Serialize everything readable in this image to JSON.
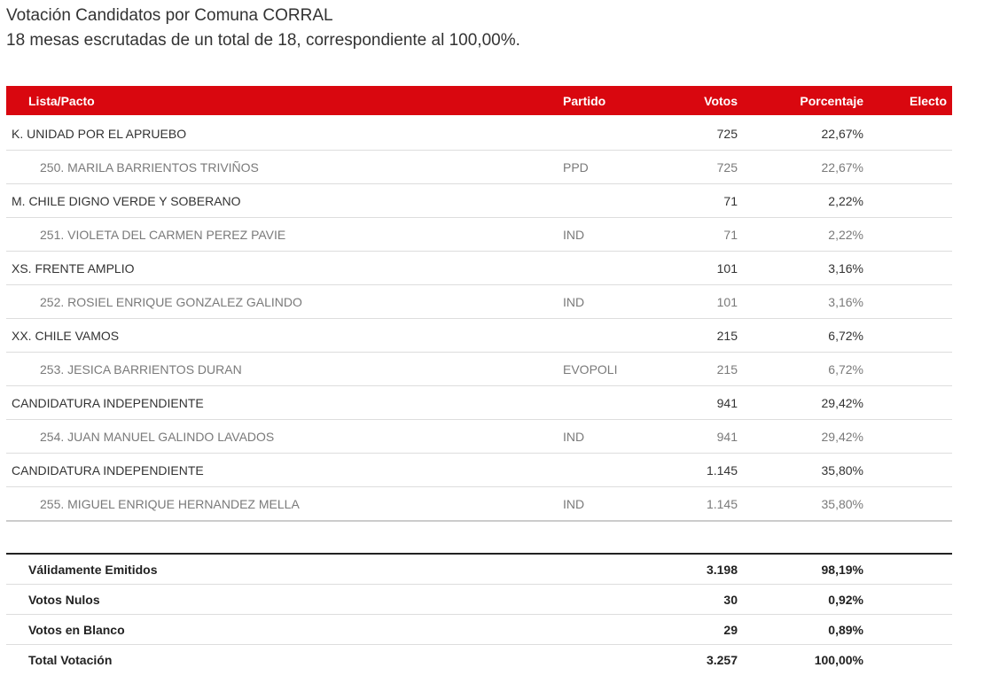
{
  "header": {
    "title": "Votación Candidatos por Comuna CORRAL",
    "subtitle": "18 mesas escrutadas de un total de 18, correspondiente al 100,00%."
  },
  "table": {
    "columns": {
      "lista": "Lista/Pacto",
      "partido": "Partido",
      "votos": "Votos",
      "porcentaje": "Porcentaje",
      "electo": "Electo"
    },
    "rows": [
      {
        "type": "list",
        "name": "K. UNIDAD POR EL APRUEBO",
        "partido": "",
        "votos": "725",
        "porcentaje": "22,67%",
        "electo": ""
      },
      {
        "type": "candidate",
        "name": "250. MARILA BARRIENTOS TRIVIÑOS",
        "partido": "PPD",
        "votos": "725",
        "porcentaje": "22,67%",
        "electo": ""
      },
      {
        "type": "list",
        "name": "M. CHILE DIGNO VERDE Y SOBERANO",
        "partido": "",
        "votos": "71",
        "porcentaje": "2,22%",
        "electo": ""
      },
      {
        "type": "candidate",
        "name": "251. VIOLETA DEL CARMEN PEREZ PAVIE",
        "partido": "IND",
        "votos": "71",
        "porcentaje": "2,22%",
        "electo": ""
      },
      {
        "type": "list",
        "name": "XS. FRENTE AMPLIO",
        "partido": "",
        "votos": "101",
        "porcentaje": "3,16%",
        "electo": ""
      },
      {
        "type": "candidate",
        "name": "252. ROSIEL ENRIQUE GONZALEZ GALINDO",
        "partido": "IND",
        "votos": "101",
        "porcentaje": "3,16%",
        "electo": ""
      },
      {
        "type": "list",
        "name": "XX. CHILE VAMOS",
        "partido": "",
        "votos": "215",
        "porcentaje": "6,72%",
        "electo": ""
      },
      {
        "type": "candidate",
        "name": "253. JESICA BARRIENTOS DURAN",
        "partido": "EVOPOLI",
        "votos": "215",
        "porcentaje": "6,72%",
        "electo": ""
      },
      {
        "type": "list",
        "name": "CANDIDATURA INDEPENDIENTE",
        "partido": "",
        "votos": "941",
        "porcentaje": "29,42%",
        "electo": ""
      },
      {
        "type": "candidate",
        "name": "254. JUAN MANUEL GALINDO LAVADOS",
        "partido": "IND",
        "votos": "941",
        "porcentaje": "29,42%",
        "electo": ""
      },
      {
        "type": "list",
        "name": "CANDIDATURA INDEPENDIENTE",
        "partido": "",
        "votos": "1.145",
        "porcentaje": "35,80%",
        "electo": ""
      },
      {
        "type": "candidate",
        "name": "255. MIGUEL ENRIQUE HERNANDEZ MELLA",
        "partido": "IND",
        "votos": "1.145",
        "porcentaje": "35,80%",
        "electo": ""
      }
    ]
  },
  "summary": [
    {
      "label": "Válidamente Emitidos",
      "votos": "3.198",
      "porcentaje": "98,19%"
    },
    {
      "label": "Votos Nulos",
      "votos": "30",
      "porcentaje": "0,92%"
    },
    {
      "label": "Votos en Blanco",
      "votos": "29",
      "porcentaje": "0,89%"
    },
    {
      "label": "Total Votación",
      "votos": "3.257",
      "porcentaje": "100,00%"
    }
  ],
  "colors": {
    "header_bg": "#d9070f",
    "header_text": "#ffffff",
    "list_text": "#333333",
    "candidate_text": "#7a7a7a"
  }
}
